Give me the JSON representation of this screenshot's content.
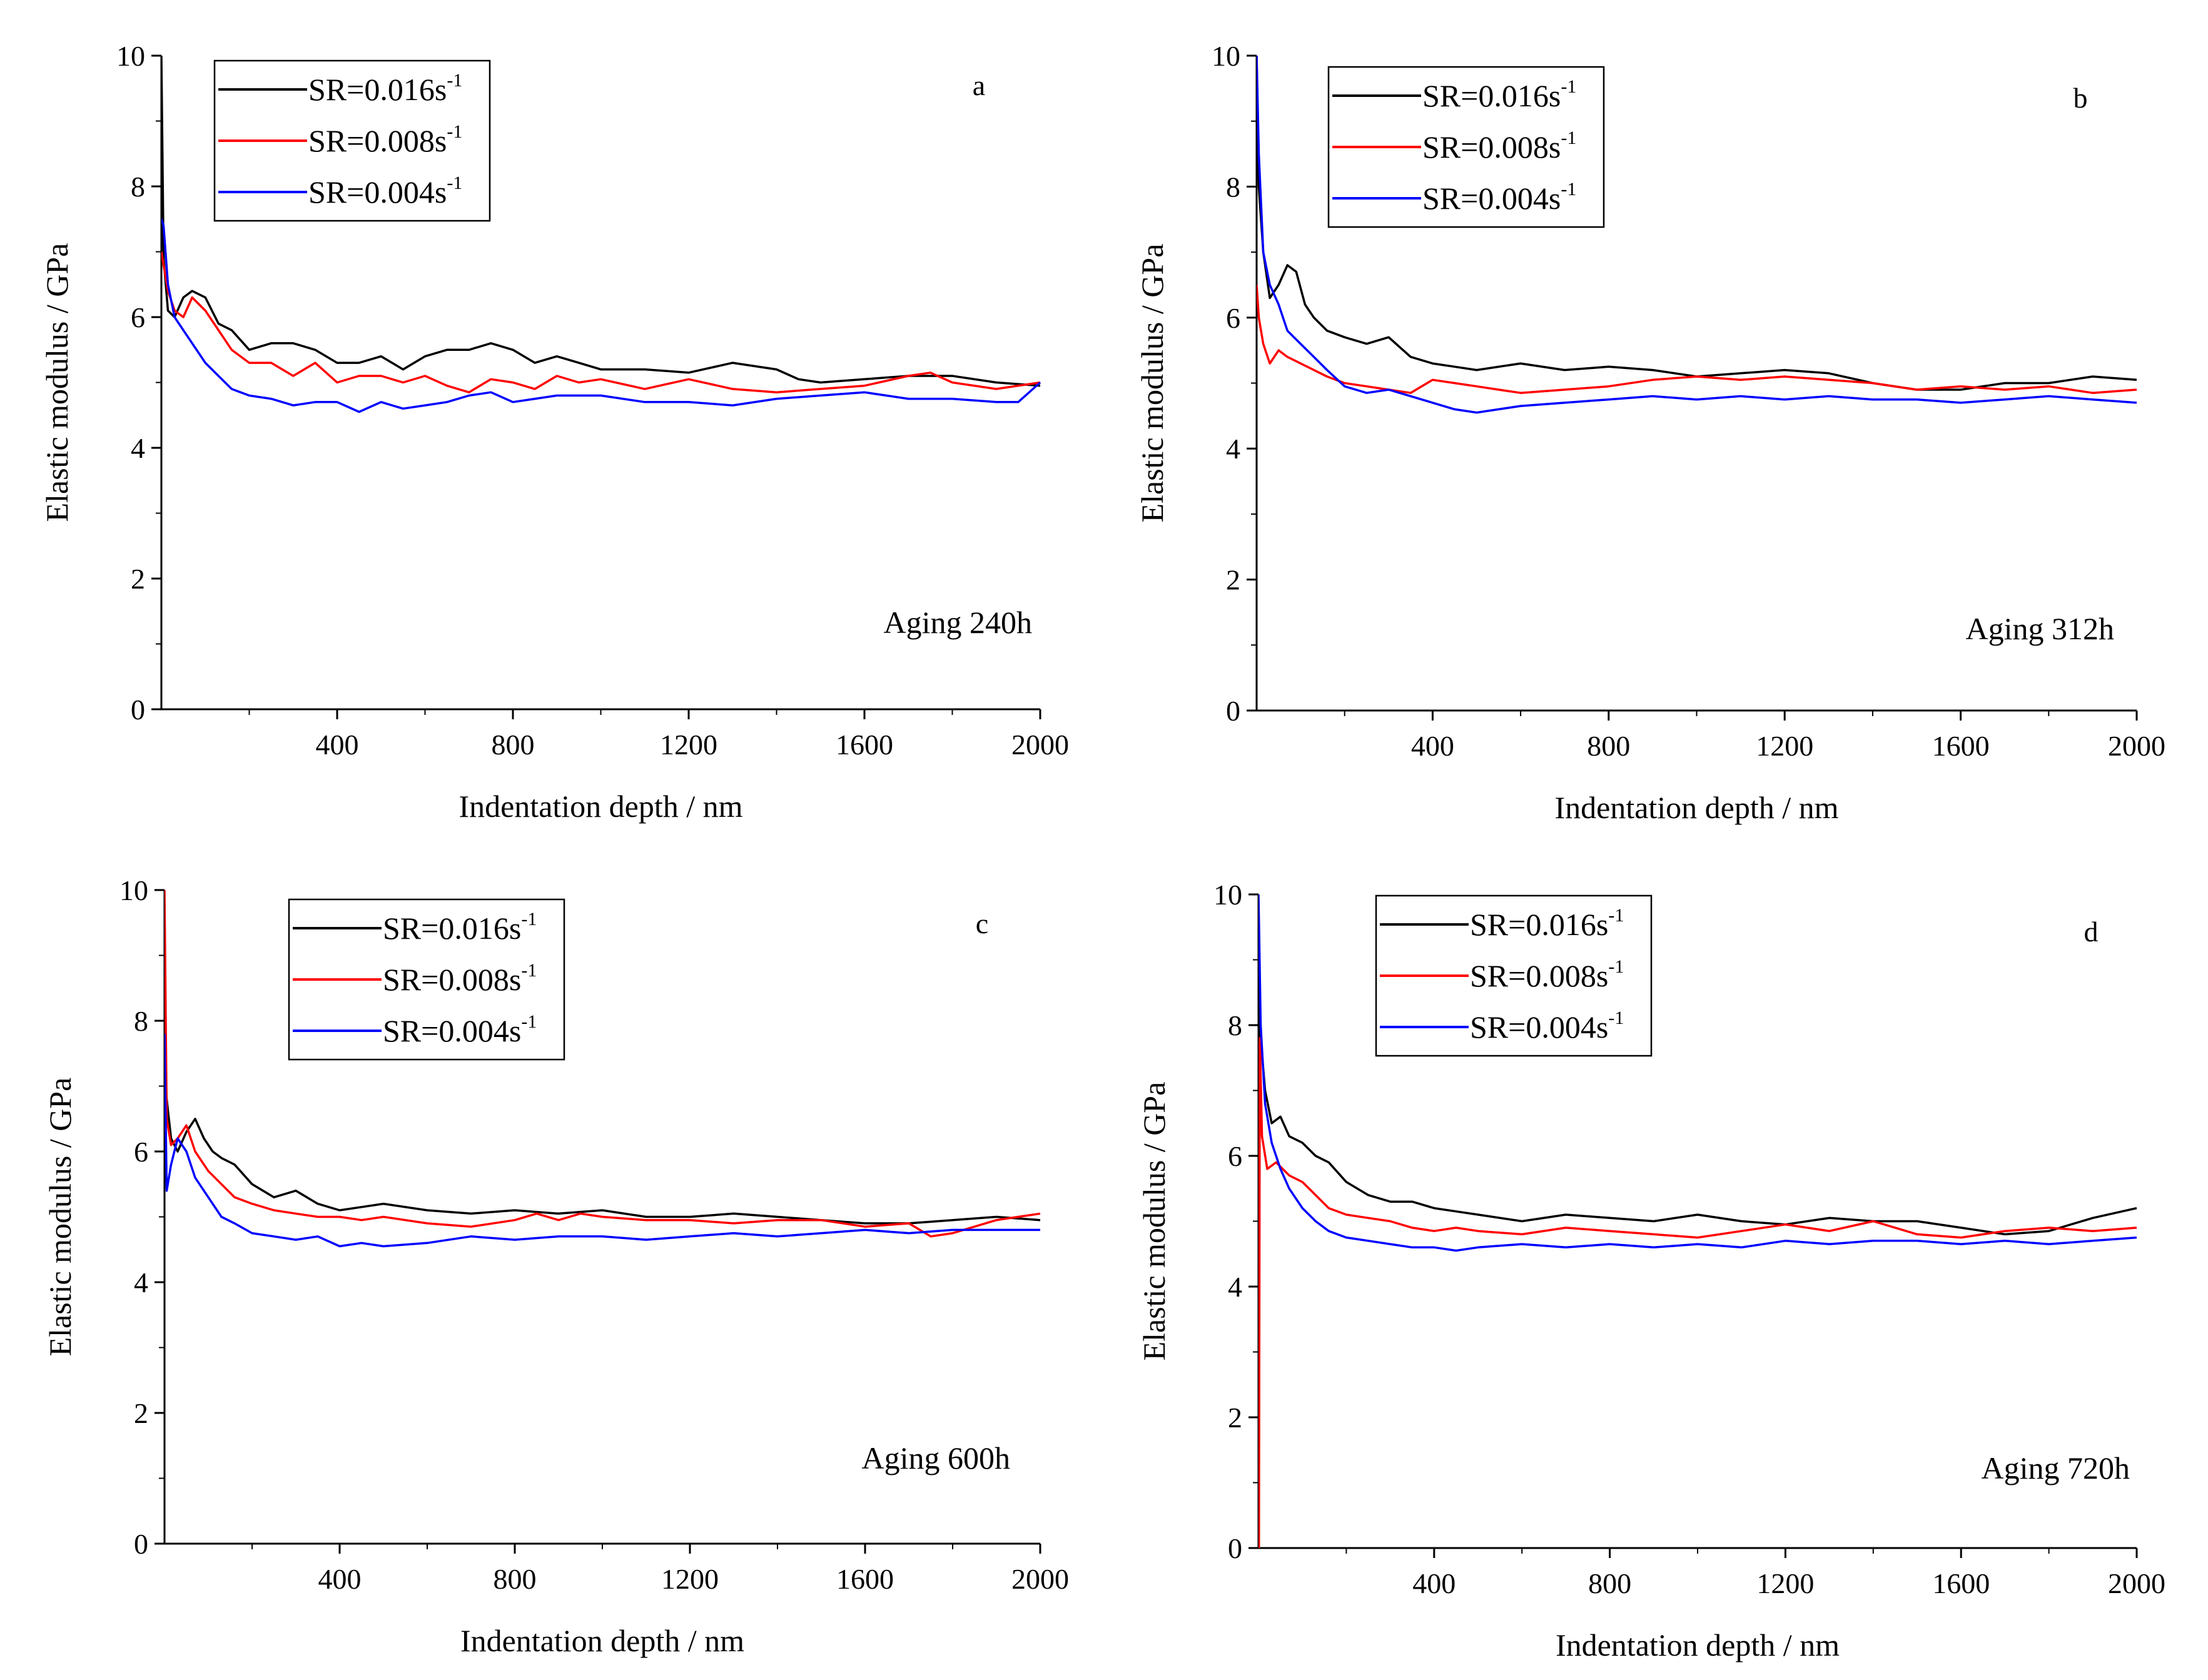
{
  "figure": {
    "panels": [
      {
        "letter": "a",
        "aging": "Aging 240h"
      },
      {
        "letter": "b",
        "aging": "Aging 312h"
      },
      {
        "letter": "c",
        "aging": "Aging 600h"
      },
      {
        "letter": "d",
        "aging": "Aging 720h"
      }
    ]
  },
  "chart_data": [
    {
      "type": "line",
      "panel": "a",
      "annotation": "Aging 240h",
      "xlabel": "Indentation depth / nm",
      "ylabel": "Elastic modulus / GPa",
      "xlim": [
        0,
        2000
      ],
      "ylim": [
        0,
        10
      ],
      "xticks": [
        400,
        800,
        1200,
        1600,
        2000
      ],
      "yticks": [
        0,
        2,
        4,
        6,
        8,
        10
      ],
      "legend_position": "top-left",
      "series": [
        {
          "name": "SR=0.016s",
          "superscript": "-1",
          "color": "#000000",
          "x": [
            0,
            5,
            15,
            30,
            50,
            70,
            100,
            130,
            160,
            200,
            250,
            300,
            350,
            400,
            450,
            500,
            550,
            600,
            650,
            700,
            750,
            800,
            850,
            900,
            950,
            1000,
            1100,
            1200,
            1300,
            1400,
            1450,
            1500,
            1600,
            1700,
            1800,
            1900,
            2000
          ],
          "y": [
            10,
            6.9,
            6.1,
            6.0,
            6.3,
            6.4,
            6.3,
            5.9,
            5.8,
            5.5,
            5.6,
            5.6,
            5.5,
            5.3,
            5.3,
            5.4,
            5.2,
            5.4,
            5.5,
            5.5,
            5.6,
            5.5,
            5.3,
            5.4,
            5.3,
            5.2,
            5.2,
            5.15,
            5.3,
            5.2,
            5.05,
            5.0,
            5.05,
            5.1,
            5.1,
            5.0,
            4.95
          ]
        },
        {
          "name": "SR=0.008s",
          "superscript": "-1",
          "color": "#ff0000",
          "x": [
            0,
            5,
            15,
            30,
            50,
            70,
            100,
            130,
            160,
            200,
            250,
            300,
            350,
            400,
            450,
            500,
            550,
            600,
            650,
            700,
            750,
            800,
            850,
            900,
            950,
            1000,
            1100,
            1200,
            1300,
            1400,
            1500,
            1600,
            1700,
            1750,
            1800,
            1900,
            2000
          ],
          "y": [
            7.0,
            6.8,
            6.4,
            6.1,
            6.0,
            6.3,
            6.1,
            5.8,
            5.5,
            5.3,
            5.3,
            5.1,
            5.3,
            5.0,
            5.1,
            5.1,
            5.0,
            5.1,
            4.95,
            4.85,
            5.05,
            5.0,
            4.9,
            5.1,
            5.0,
            5.05,
            4.9,
            5.05,
            4.9,
            4.85,
            4.9,
            4.95,
            5.1,
            5.15,
            5.0,
            4.9,
            5.0
          ]
        },
        {
          "name": "SR=0.004s",
          "superscript": "-1",
          "color": "#0000ff",
          "x": [
            0,
            5,
            15,
            30,
            50,
            70,
            100,
            130,
            160,
            200,
            250,
            300,
            350,
            400,
            450,
            500,
            550,
            600,
            650,
            700,
            750,
            800,
            850,
            900,
            1000,
            1100,
            1200,
            1300,
            1400,
            1500,
            1600,
            1700,
            1800,
            1900,
            1950,
            2000
          ],
          "y": [
            7.5,
            7.4,
            6.5,
            6.0,
            5.8,
            5.6,
            5.3,
            5.1,
            4.9,
            4.8,
            4.75,
            4.65,
            4.7,
            4.7,
            4.55,
            4.7,
            4.6,
            4.65,
            4.7,
            4.8,
            4.85,
            4.7,
            4.75,
            4.8,
            4.8,
            4.7,
            4.7,
            4.65,
            4.75,
            4.8,
            4.85,
            4.75,
            4.75,
            4.7,
            4.7,
            5.0
          ]
        }
      ]
    },
    {
      "type": "line",
      "panel": "b",
      "annotation": "Aging 312h",
      "xlabel": "Indentation depth / nm",
      "ylabel": "Elastic modulus / GPa",
      "xlim": [
        0,
        2000
      ],
      "ylim": [
        0,
        10
      ],
      "xticks": [
        400,
        800,
        1200,
        1600,
        2000
      ],
      "yticks": [
        0,
        2,
        4,
        6,
        8,
        10
      ],
      "legend_position": "top-left",
      "series": [
        {
          "name": "SR=0.016s",
          "superscript": "-1",
          "color": "#000000",
          "x": [
            0,
            5,
            15,
            30,
            50,
            70,
            90,
            110,
            130,
            160,
            200,
            250,
            300,
            350,
            400,
            450,
            500,
            600,
            700,
            800,
            900,
            1000,
            1100,
            1200,
            1300,
            1400,
            1500,
            1600,
            1700,
            1800,
            1900,
            2000
          ],
          "y": [
            10,
            8.0,
            7.0,
            6.3,
            6.5,
            6.8,
            6.7,
            6.2,
            6.0,
            5.8,
            5.7,
            5.6,
            5.7,
            5.4,
            5.3,
            5.25,
            5.2,
            5.3,
            5.2,
            5.25,
            5.2,
            5.1,
            5.15,
            5.2,
            5.15,
            5.0,
            4.9,
            4.9,
            5.0,
            5.0,
            5.1,
            5.05
          ]
        },
        {
          "name": "SR=0.008s",
          "superscript": "-1",
          "color": "#ff0000",
          "x": [
            0,
            5,
            15,
            30,
            50,
            70,
            100,
            130,
            160,
            200,
            250,
            300,
            350,
            400,
            450,
            500,
            550,
            600,
            700,
            800,
            900,
            1000,
            1100,
            1200,
            1300,
            1400,
            1500,
            1600,
            1700,
            1800,
            1900,
            2000
          ],
          "y": [
            6.5,
            6.0,
            5.6,
            5.3,
            5.5,
            5.4,
            5.3,
            5.2,
            5.1,
            5.0,
            4.95,
            4.9,
            4.85,
            5.05,
            5.0,
            4.95,
            4.9,
            4.85,
            4.9,
            4.95,
            5.05,
            5.1,
            5.05,
            5.1,
            5.05,
            5.0,
            4.9,
            4.95,
            4.9,
            4.95,
            4.85,
            4.9
          ]
        },
        {
          "name": "SR=0.004s",
          "superscript": "-1",
          "color": "#0000ff",
          "x": [
            0,
            5,
            15,
            30,
            50,
            70,
            100,
            130,
            160,
            200,
            250,
            300,
            350,
            400,
            450,
            500,
            550,
            600,
            700,
            800,
            900,
            1000,
            1100,
            1200,
            1300,
            1400,
            1500,
            1600,
            1700,
            1800,
            1900,
            2000
          ],
          "y": [
            10,
            8.5,
            7.0,
            6.5,
            6.2,
            5.8,
            5.6,
            5.4,
            5.2,
            4.95,
            4.85,
            4.9,
            4.8,
            4.7,
            4.6,
            4.55,
            4.6,
            4.65,
            4.7,
            4.75,
            4.8,
            4.75,
            4.8,
            4.75,
            4.8,
            4.75,
            4.75,
            4.7,
            4.75,
            4.8,
            4.75,
            4.7
          ]
        }
      ]
    },
    {
      "type": "line",
      "panel": "c",
      "annotation": "Aging 600h",
      "xlabel": "Indentation depth / nm",
      "ylabel": "Elastic modulus / GPa",
      "xlim": [
        0,
        2000
      ],
      "ylim": [
        0,
        10
      ],
      "xticks": [
        400,
        800,
        1200,
        1600,
        2000
      ],
      "yticks": [
        0,
        2,
        4,
        6,
        8,
        10
      ],
      "legend_position": "top-left",
      "series": [
        {
          "name": "SR=0.016s",
          "superscript": "-1",
          "color": "#000000",
          "x": [
            0,
            5,
            15,
            30,
            50,
            70,
            90,
            110,
            130,
            160,
            200,
            250,
            300,
            350,
            400,
            450,
            500,
            600,
            700,
            800,
            900,
            1000,
            1100,
            1200,
            1300,
            1400,
            1500,
            1600,
            1700,
            1800,
            1900,
            2000
          ],
          "y": [
            7.5,
            6.8,
            6.2,
            6.0,
            6.3,
            6.5,
            6.2,
            6.0,
            5.9,
            5.8,
            5.5,
            5.3,
            5.4,
            5.2,
            5.1,
            5.15,
            5.2,
            5.1,
            5.05,
            5.1,
            5.05,
            5.1,
            5.0,
            5.0,
            5.05,
            5.0,
            4.95,
            4.9,
            4.9,
            4.95,
            5.0,
            4.95
          ]
        },
        {
          "name": "SR=0.008s",
          "superscript": "-1",
          "color": "#ff0000",
          "x": [
            0,
            5,
            15,
            30,
            50,
            70,
            100,
            130,
            160,
            200,
            250,
            300,
            350,
            400,
            450,
            500,
            600,
            700,
            800,
            850,
            900,
            950,
            1000,
            1100,
            1200,
            1300,
            1400,
            1500,
            1600,
            1700,
            1750,
            1800,
            1900,
            2000
          ],
          "y": [
            10,
            6.5,
            6.1,
            6.2,
            6.4,
            6.0,
            5.7,
            5.5,
            5.3,
            5.2,
            5.1,
            5.05,
            5.0,
            5.0,
            4.95,
            5.0,
            4.9,
            4.85,
            4.95,
            5.05,
            4.95,
            5.05,
            5.0,
            4.95,
            4.95,
            4.9,
            4.95,
            4.95,
            4.85,
            4.9,
            4.7,
            4.75,
            4.95,
            5.05
          ]
        },
        {
          "name": "SR=0.004s",
          "superscript": "-1",
          "color": "#0000ff",
          "x": [
            0,
            5,
            15,
            30,
            50,
            70,
            100,
            130,
            160,
            200,
            250,
            300,
            350,
            400,
            450,
            500,
            600,
            700,
            800,
            900,
            1000,
            1100,
            1200,
            1300,
            1400,
            1500,
            1600,
            1700,
            1800,
            1900,
            2000
          ],
          "y": [
            7.8,
            5.4,
            5.8,
            6.2,
            6.0,
            5.6,
            5.3,
            5.0,
            4.9,
            4.75,
            4.7,
            4.65,
            4.7,
            4.55,
            4.6,
            4.55,
            4.6,
            4.7,
            4.65,
            4.7,
            4.7,
            4.65,
            4.7,
            4.75,
            4.7,
            4.75,
            4.8,
            4.75,
            4.8,
            4.8,
            4.8
          ]
        }
      ]
    },
    {
      "type": "line",
      "panel": "d",
      "annotation": "Aging 720h",
      "xlabel": "Indentation depth / nm",
      "ylabel": "Elastic modulus / GPa",
      "xlim": [
        0,
        2000
      ],
      "ylim": [
        0,
        10
      ],
      "xticks": [
        400,
        800,
        1200,
        1600,
        2000
      ],
      "yticks": [
        0,
        2,
        4,
        6,
        8,
        10
      ],
      "legend_position": "top-left",
      "series": [
        {
          "name": "SR=0.016s",
          "superscript": "-1",
          "color": "#000000",
          "x": [
            0,
            5,
            15,
            30,
            50,
            70,
            100,
            130,
            160,
            200,
            250,
            300,
            350,
            400,
            450,
            500,
            600,
            700,
            800,
            900,
            1000,
            1100,
            1200,
            1300,
            1400,
            1500,
            1600,
            1700,
            1800,
            1900,
            2000
          ],
          "y": [
            8.2,
            7.8,
            7.0,
            6.5,
            6.6,
            6.3,
            6.2,
            6.0,
            5.9,
            5.6,
            5.4,
            5.3,
            5.3,
            5.2,
            5.15,
            5.1,
            5.0,
            5.1,
            5.05,
            5.0,
            5.1,
            5.0,
            4.95,
            5.05,
            5.0,
            5.0,
            4.9,
            4.8,
            4.85,
            5.05,
            5.2
          ]
        },
        {
          "name": "SR=0.008s",
          "superscript": "-1",
          "color": "#ff0000",
          "x": [
            0,
            1,
            3,
            8,
            20,
            40,
            70,
            100,
            130,
            160,
            200,
            250,
            300,
            350,
            400,
            450,
            500,
            600,
            700,
            800,
            900,
            1000,
            1100,
            1200,
            1300,
            1400,
            1500,
            1600,
            1700,
            1800,
            1900,
            2000
          ],
          "y": [
            0,
            0,
            7.8,
            6.3,
            5.8,
            5.9,
            5.7,
            5.6,
            5.4,
            5.2,
            5.1,
            5.05,
            5.0,
            4.9,
            4.85,
            4.9,
            4.85,
            4.8,
            4.9,
            4.85,
            4.8,
            4.75,
            4.85,
            4.95,
            4.85,
            5.0,
            4.8,
            4.75,
            4.85,
            4.9,
            4.85,
            4.9
          ]
        },
        {
          "name": "SR=0.004s",
          "superscript": "-1",
          "color": "#0000ff",
          "x": [
            0,
            5,
            15,
            30,
            50,
            70,
            100,
            130,
            160,
            200,
            250,
            300,
            350,
            400,
            450,
            500,
            600,
            700,
            800,
            900,
            1000,
            1100,
            1200,
            1300,
            1400,
            1500,
            1600,
            1700,
            1800,
            1900,
            2000
          ],
          "y": [
            10,
            8.0,
            6.8,
            6.2,
            5.8,
            5.5,
            5.2,
            5.0,
            4.85,
            4.75,
            4.7,
            4.65,
            4.6,
            4.6,
            4.55,
            4.6,
            4.65,
            4.6,
            4.65,
            4.6,
            4.65,
            4.6,
            4.7,
            4.65,
            4.7,
            4.7,
            4.65,
            4.7,
            4.65,
            4.7,
            4.75
          ]
        }
      ]
    }
  ]
}
